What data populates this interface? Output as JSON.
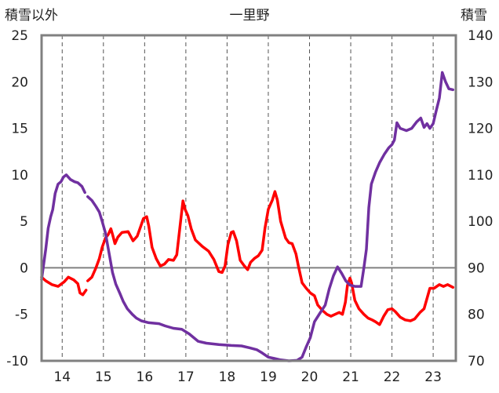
{
  "chart_data": {
    "type": "line",
    "title": "一里野",
    "left_axis_label": "積雪以外",
    "right_axis_label": "積雪",
    "left_ylim": [
      -10,
      25
    ],
    "left_ticks": [
      -10,
      -5,
      0,
      5,
      10,
      15,
      20,
      25
    ],
    "right_ylim": [
      70,
      140
    ],
    "right_ticks": [
      70,
      80,
      90,
      100,
      110,
      120,
      130,
      140
    ],
    "xlim": [
      13.5,
      23.55
    ],
    "x_ticks": [
      14,
      15,
      16,
      17,
      18,
      19,
      20,
      21,
      22,
      23
    ],
    "x_tick_labels": [
      "14",
      "15",
      "16",
      "17",
      "18",
      "19",
      "20",
      "21",
      "22",
      "23"
    ],
    "grid": {
      "vertical": "dashed",
      "horizontal_zero_line": true
    },
    "colors": {
      "red_series": "#ff0000",
      "purple_series": "#7030a0",
      "frame": "#808080",
      "zero_line": "#808080",
      "grid": "#555555"
    },
    "series": [
      {
        "axis": "left",
        "color": "#ff0000",
        "segments": [
          [
            [
              13.5,
              -1
            ],
            [
              13.6,
              -1.4
            ],
            [
              13.75,
              -1.8
            ],
            [
              13.9,
              -2
            ],
            [
              14.05,
              -1.5
            ],
            [
              14.15,
              -1
            ],
            [
              14.28,
              -1.3
            ],
            [
              14.38,
              -1.7
            ],
            [
              14.43,
              -2.7
            ],
            [
              14.5,
              -2.9
            ],
            [
              14.58,
              -2.4
            ]
          ],
          [
            [
              14.62,
              -1.4
            ],
            [
              14.72,
              -1
            ],
            [
              14.82,
              0
            ],
            [
              14.9,
              1
            ],
            [
              14.97,
              2.2
            ],
            [
              15.05,
              3.2
            ],
            [
              15.12,
              3.6
            ],
            [
              15.18,
              4.2
            ],
            [
              15.22,
              3.6
            ],
            [
              15.28,
              2.6
            ],
            [
              15.35,
              3.3
            ],
            [
              15.45,
              3.8
            ],
            [
              15.6,
              3.9
            ],
            [
              15.72,
              2.9
            ],
            [
              15.82,
              3.4
            ],
            [
              15.9,
              4.4
            ],
            [
              15.97,
              5.3
            ],
            [
              16.05,
              5.5
            ],
            [
              16.1,
              4.5
            ],
            [
              16.18,
              2.2
            ],
            [
              16.28,
              1
            ],
            [
              16.38,
              0.2
            ],
            [
              16.48,
              0.4
            ],
            [
              16.58,
              0.9
            ],
            [
              16.7,
              0.8
            ],
            [
              16.78,
              1.4
            ],
            [
              16.86,
              4.5
            ],
            [
              16.93,
              7.2
            ],
            [
              16.98,
              6.3
            ],
            [
              17.05,
              5.6
            ],
            [
              17.13,
              4.2
            ],
            [
              17.23,
              3
            ],
            [
              17.4,
              2.3
            ],
            [
              17.55,
              1.8
            ],
            [
              17.68,
              0.9
            ],
            [
              17.8,
              -0.4
            ],
            [
              17.88,
              -0.5
            ],
            [
              17.95,
              0.2
            ],
            [
              18.02,
              2.5
            ],
            [
              18.1,
              3.8
            ],
            [
              18.15,
              3.9
            ],
            [
              18.23,
              2.9
            ],
            [
              18.32,
              0.8
            ],
            [
              18.42,
              0.2
            ],
            [
              18.5,
              -0.2
            ],
            [
              18.57,
              0.6
            ],
            [
              18.66,
              1
            ],
            [
              18.76,
              1.3
            ],
            [
              18.85,
              1.9
            ],
            [
              18.92,
              4.3
            ],
            [
              19.0,
              6.3
            ],
            [
              19.1,
              7.3
            ],
            [
              19.16,
              8.2
            ],
            [
              19.22,
              7.3
            ],
            [
              19.3,
              5
            ],
            [
              19.42,
              3.2
            ],
            [
              19.5,
              2.7
            ],
            [
              19.58,
              2.6
            ],
            [
              19.67,
              1.5
            ],
            [
              19.73,
              0.2
            ],
            [
              19.82,
              -1.6
            ],
            [
              19.92,
              -2.2
            ],
            [
              20.02,
              -2.7
            ],
            [
              20.12,
              -3
            ],
            [
              20.2,
              -4
            ],
            [
              20.32,
              -4.6
            ],
            [
              20.42,
              -5
            ],
            [
              20.52,
              -5.2
            ],
            [
              20.62,
              -5
            ],
            [
              20.72,
              -4.8
            ],
            [
              20.8,
              -5
            ],
            [
              20.87,
              -3.7
            ],
            [
              20.92,
              -1.9
            ],
            [
              20.98,
              -1.1
            ],
            [
              21.02,
              -1.6
            ],
            [
              21.1,
              -3.5
            ],
            [
              21.2,
              -4.4
            ],
            [
              21.32,
              -5
            ],
            [
              21.42,
              -5.4
            ],
            [
              21.52,
              -5.6
            ],
            [
              21.6,
              -5.8
            ],
            [
              21.7,
              -6.1
            ],
            [
              21.8,
              -5.2
            ],
            [
              21.9,
              -4.5
            ],
            [
              22.0,
              -4.4
            ],
            [
              22.08,
              -4.7
            ],
            [
              22.2,
              -5.3
            ],
            [
              22.32,
              -5.6
            ],
            [
              22.45,
              -5.7
            ],
            [
              22.55,
              -5.5
            ],
            [
              22.68,
              -4.8
            ],
            [
              22.78,
              -4.4
            ],
            [
              22.85,
              -3.3
            ],
            [
              22.92,
              -2.2
            ],
            [
              23.02,
              -2.2
            ],
            [
              23.15,
              -1.8
            ],
            [
              23.25,
              -2
            ],
            [
              23.35,
              -1.8
            ],
            [
              23.48,
              -2.1
            ]
          ]
        ]
      },
      {
        "axis": "right",
        "color": "#7030a0",
        "segments": [
          [
            [
              13.5,
              87.5
            ],
            [
              13.6,
              94
            ],
            [
              13.66,
              98.5
            ],
            [
              13.72,
              101
            ],
            [
              13.77,
              102.5
            ],
            [
              13.83,
              106
            ],
            [
              13.9,
              108
            ],
            [
              13.97,
              108.5
            ],
            [
              14.03,
              109.5
            ],
            [
              14.1,
              110
            ],
            [
              14.2,
              109
            ],
            [
              14.3,
              108.5
            ],
            [
              14.38,
              108.3
            ],
            [
              14.48,
              107.5
            ],
            [
              14.55,
              106.2
            ]
          ],
          [
            [
              14.62,
              105.3
            ],
            [
              14.72,
              104.5
            ],
            [
              14.82,
              103.2
            ],
            [
              14.9,
              102
            ],
            [
              14.97,
              100
            ],
            [
              15.05,
              97.5
            ],
            [
              15.15,
              92.5
            ],
            [
              15.22,
              89
            ],
            [
              15.3,
              86.5
            ],
            [
              15.4,
              84.5
            ],
            [
              15.48,
              82.8
            ],
            [
              15.58,
              81.2
            ],
            [
              15.7,
              80
            ],
            [
              15.8,
              79.2
            ],
            [
              15.92,
              78.6
            ],
            [
              16.1,
              78.2
            ],
            [
              16.35,
              78
            ],
            [
              16.5,
              77.5
            ],
            [
              16.7,
              77
            ],
            [
              16.9,
              76.8
            ],
            [
              17.08,
              75.8
            ],
            [
              17.3,
              74.2
            ],
            [
              17.5,
              73.8
            ],
            [
              17.8,
              73.5
            ],
            [
              18.1,
              73.3
            ],
            [
              18.35,
              73.2
            ],
            [
              18.55,
              72.8
            ],
            [
              18.72,
              72.4
            ],
            [
              18.85,
              71.7
            ],
            [
              19.0,
              70.8
            ],
            [
              19.15,
              70.5
            ],
            [
              19.3,
              70.2
            ],
            [
              19.5,
              70
            ],
            [
              19.7,
              70.1
            ],
            [
              19.82,
              70.8
            ],
            [
              19.92,
              73
            ],
            [
              20.02,
              75
            ],
            [
              20.12,
              78.4
            ],
            [
              20.25,
              80.2
            ],
            [
              20.38,
              82
            ],
            [
              20.48,
              85.5
            ],
            [
              20.58,
              88.3
            ],
            [
              20.68,
              90.2
            ],
            [
              20.78,
              88.8
            ],
            [
              20.88,
              87.2
            ],
            [
              20.98,
              86.3
            ],
            [
              21.1,
              86
            ],
            [
              21.25,
              86
            ],
            [
              21.32,
              90
            ],
            [
              21.38,
              94
            ],
            [
              21.44,
              103
            ],
            [
              21.5,
              108
            ],
            [
              21.6,
              110.6
            ],
            [
              21.7,
              112.6
            ],
            [
              21.82,
              114.5
            ],
            [
              21.92,
              115.8
            ],
            [
              22.0,
              116.5
            ],
            [
              22.06,
              117.5
            ],
            [
              22.12,
              121.2
            ],
            [
              22.2,
              120
            ],
            [
              22.35,
              119.5
            ],
            [
              22.48,
              120
            ],
            [
              22.6,
              121.4
            ],
            [
              22.7,
              122.2
            ],
            [
              22.78,
              120.2
            ],
            [
              22.85,
              121
            ],
            [
              22.92,
              120
            ],
            [
              23.0,
              121
            ],
            [
              23.08,
              124
            ],
            [
              23.15,
              126.5
            ],
            [
              23.22,
              132
            ],
            [
              23.3,
              130
            ],
            [
              23.38,
              128.5
            ],
            [
              23.48,
              128.3
            ]
          ]
        ]
      }
    ]
  }
}
